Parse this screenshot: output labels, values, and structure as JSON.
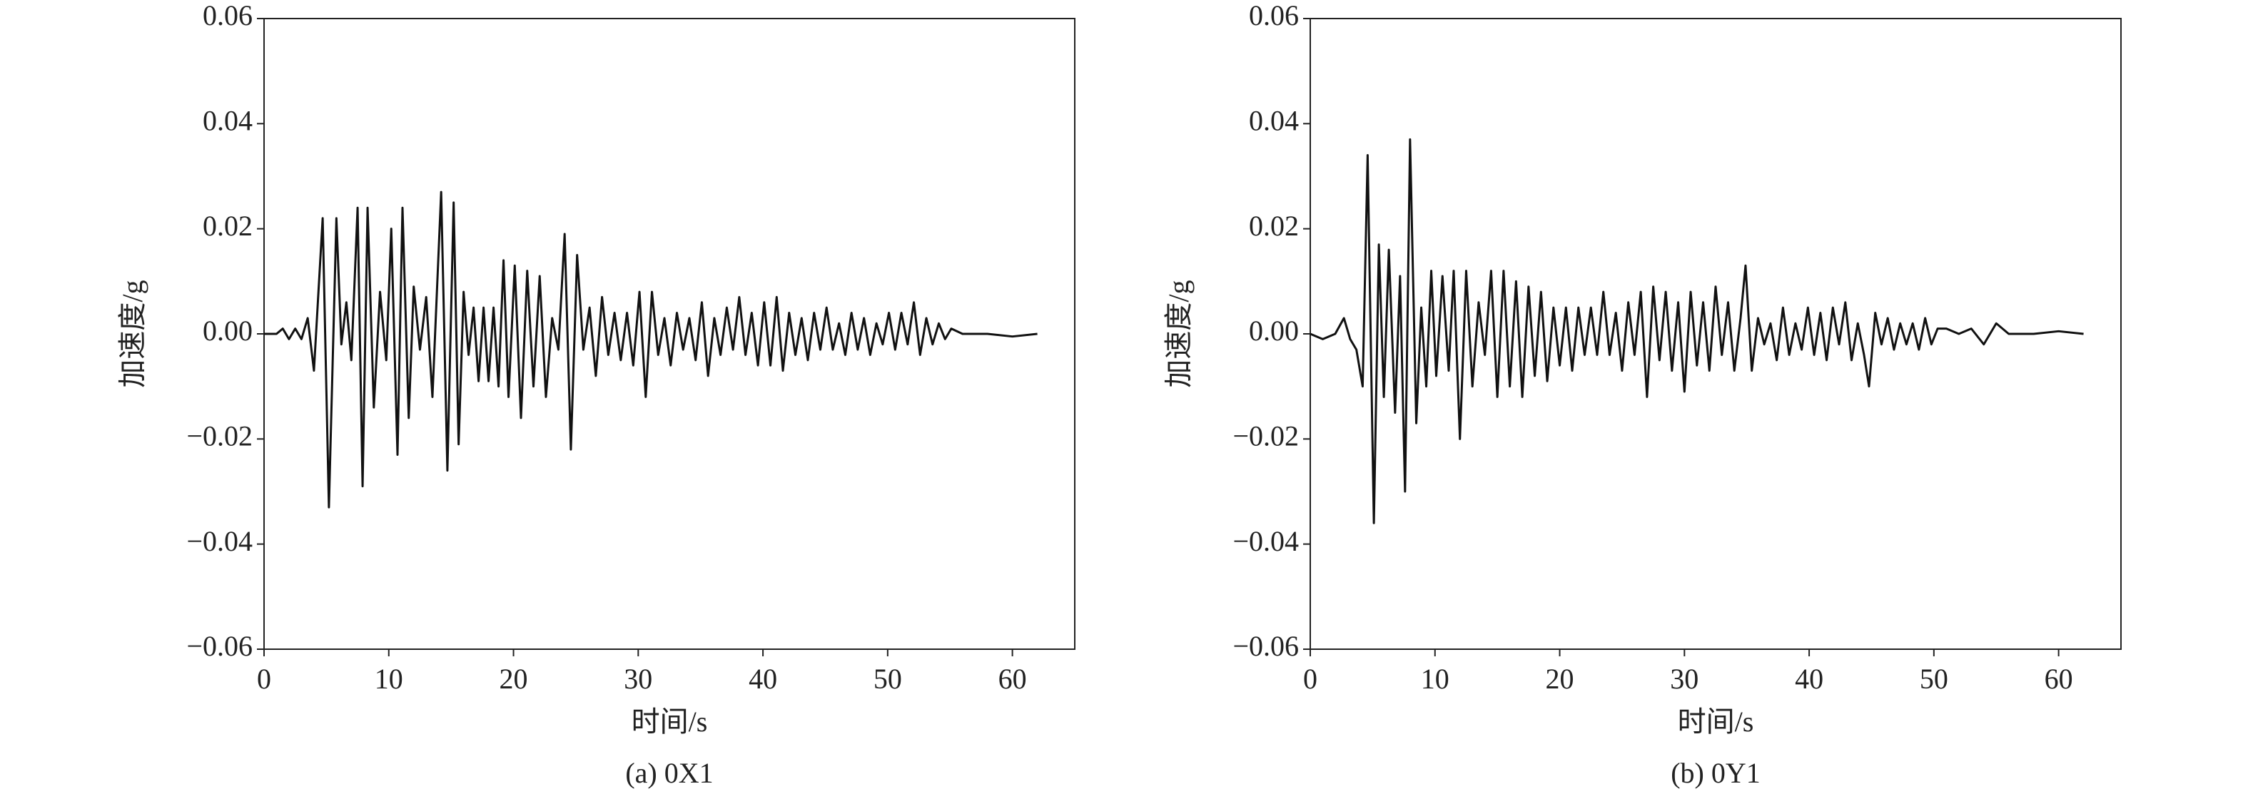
{
  "chart_data": [
    {
      "type": "line",
      "title": "(a) 0X1",
      "xlabel": "时间/s",
      "ylabel": "加速度/g",
      "color": "#111111",
      "xlim": [
        0,
        65
      ],
      "ylim": [
        -0.06,
        0.06
      ],
      "xticks": [
        0,
        10,
        20,
        30,
        40,
        50,
        60
      ],
      "yticks": [
        {
          "value": -0.06,
          "label": "−0.06"
        },
        {
          "value": -0.04,
          "label": "−0.04"
        },
        {
          "value": -0.02,
          "label": "−0.02"
        },
        {
          "value": 0,
          "label": "0.00"
        },
        0.02,
        0.04,
        0.06
      ],
      "x": [
        0,
        1,
        1.5,
        2,
        2.5,
        3,
        3.5,
        4,
        4.7,
        5.2,
        5.8,
        6.2,
        6.6,
        7.0,
        7.5,
        7.9,
        8.3,
        8.8,
        9.3,
        9.8,
        10.2,
        10.7,
        11.1,
        11.6,
        12.0,
        12.5,
        13,
        13.5,
        14.2,
        14.7,
        15.2,
        15.6,
        16.0,
        16.4,
        16.8,
        17.2,
        17.6,
        18,
        18.4,
        18.8,
        19.2,
        19.6,
        20.1,
        20.6,
        21.1,
        21.6,
        22.1,
        22.6,
        23.1,
        23.6,
        24.1,
        24.6,
        25.1,
        25.6,
        26.1,
        26.6,
        27.1,
        27.6,
        28.1,
        28.6,
        29.1,
        29.6,
        30.1,
        30.6,
        31.1,
        31.6,
        32.1,
        32.6,
        33.1,
        33.6,
        34.1,
        34.6,
        35.1,
        35.6,
        36.1,
        36.6,
        37.1,
        37.6,
        38.1,
        38.6,
        39.1,
        39.6,
        40.1,
        40.6,
        41.1,
        41.6,
        42.1,
        42.6,
        43.1,
        43.6,
        44.1,
        44.6,
        45.1,
        45.6,
        46.1,
        46.6,
        47.1,
        47.6,
        48.1,
        48.6,
        49.1,
        49.6,
        50.1,
        50.6,
        51.1,
        51.6,
        52.1,
        52.6,
        53.1,
        53.6,
        54.1,
        54.6,
        55.1,
        56,
        58,
        60,
        62
      ],
      "values": [
        0,
        0,
        0.001,
        -0.001,
        0.001,
        -0.001,
        0.003,
        -0.007,
        0.022,
        -0.033,
        0.022,
        -0.002,
        0.006,
        -0.005,
        0.024,
        -0.029,
        0.024,
        -0.014,
        0.008,
        -0.005,
        0.02,
        -0.023,
        0.024,
        -0.016,
        0.009,
        -0.003,
        0.007,
        -0.012,
        0.027,
        -0.026,
        0.025,
        -0.021,
        0.008,
        -0.004,
        0.005,
        -0.009,
        0.005,
        -0.009,
        0.005,
        -0.01,
        0.014,
        -0.012,
        0.013,
        -0.016,
        0.012,
        -0.01,
        0.011,
        -0.012,
        0.003,
        -0.003,
        0.019,
        -0.022,
        0.015,
        -0.003,
        0.005,
        -0.008,
        0.007,
        -0.004,
        0.004,
        -0.005,
        0.004,
        -0.006,
        0.008,
        -0.012,
        0.008,
        -0.004,
        0.003,
        -0.006,
        0.004,
        -0.003,
        0.003,
        -0.005,
        0.006,
        -0.008,
        0.003,
        -0.004,
        0.005,
        -0.003,
        0.007,
        -0.004,
        0.004,
        -0.006,
        0.006,
        -0.006,
        0.007,
        -0.007,
        0.004,
        -0.004,
        0.003,
        -0.005,
        0.004,
        -0.003,
        0.005,
        -0.003,
        0.002,
        -0.004,
        0.004,
        -0.003,
        0.003,
        -0.004,
        0.002,
        -0.002,
        0.004,
        -0.003,
        0.004,
        -0.002,
        0.006,
        -0.004,
        0.003,
        -0.002,
        0.002,
        -0.001,
        0.001,
        0,
        0,
        -0.0005,
        0
      ]
    },
    {
      "type": "line",
      "title": "(b) 0Y1",
      "xlabel": "时间/s",
      "ylabel": "加速度/g",
      "color": "#111111",
      "xlim": [
        0,
        65
      ],
      "ylim": [
        -0.06,
        0.06
      ],
      "xticks": [
        0,
        10,
        20,
        30,
        40,
        50,
        60
      ],
      "yticks": [
        {
          "value": -0.06,
          "label": "−0.06"
        },
        {
          "value": -0.04,
          "label": "−0.04"
        },
        {
          "value": -0.02,
          "label": "−0.02"
        },
        {
          "value": 0,
          "label": "0.00"
        },
        0.02,
        0.04,
        0.06
      ],
      "x": [
        0,
        1,
        2,
        2.7,
        3.2,
        3.7,
        4.2,
        4.6,
        5.1,
        5.5,
        5.9,
        6.3,
        6.8,
        7.2,
        7.6,
        8.0,
        8.5,
        8.9,
        9.3,
        9.7,
        10.1,
        10.6,
        11.1,
        11.5,
        12.0,
        12.5,
        13.0,
        13.5,
        14.0,
        14.5,
        15.0,
        15.5,
        16.0,
        16.5,
        17.0,
        17.5,
        18.0,
        18.5,
        19.0,
        19.5,
        20.0,
        20.5,
        21.0,
        21.5,
        22.0,
        22.5,
        23.0,
        23.5,
        24.0,
        24.5,
        25.0,
        25.5,
        26.0,
        26.5,
        27.0,
        27.5,
        28.0,
        28.5,
        29.0,
        29.5,
        30.0,
        30.5,
        31.0,
        31.5,
        32.0,
        32.5,
        33.0,
        33.5,
        34.0,
        34.5,
        34.9,
        35.4,
        35.9,
        36.4,
        36.9,
        37.4,
        37.9,
        38.4,
        38.9,
        39.4,
        39.9,
        40.4,
        40.9,
        41.4,
        41.9,
        42.4,
        42.9,
        43.4,
        43.9,
        44.4,
        44.8,
        45.3,
        45.8,
        46.3,
        46.8,
        47.3,
        47.8,
        48.3,
        48.8,
        49.3,
        49.8,
        50.3,
        51,
        52,
        53,
        54,
        55,
        56,
        58,
        60,
        62
      ],
      "values": [
        0,
        -0.001,
        0,
        0.003,
        -0.001,
        -0.003,
        -0.01,
        0.034,
        -0.036,
        0.017,
        -0.012,
        0.016,
        -0.015,
        0.011,
        -0.03,
        0.037,
        -0.017,
        0.005,
        -0.01,
        0.012,
        -0.008,
        0.011,
        -0.007,
        0.012,
        -0.02,
        0.012,
        -0.01,
        0.006,
        -0.004,
        0.012,
        -0.012,
        0.012,
        -0.01,
        0.01,
        -0.012,
        0.009,
        -0.008,
        0.008,
        -0.009,
        0.005,
        -0.006,
        0.005,
        -0.007,
        0.005,
        -0.004,
        0.005,
        -0.004,
        0.008,
        -0.004,
        0.004,
        -0.007,
        0.006,
        -0.004,
        0.008,
        -0.012,
        0.009,
        -0.005,
        0.008,
        -0.007,
        0.006,
        -0.011,
        0.008,
        -0.006,
        0.006,
        -0.007,
        0.009,
        -0.004,
        0.006,
        -0.007,
        0.003,
        0.013,
        -0.007,
        0.003,
        -0.002,
        0.002,
        -0.005,
        0.005,
        -0.004,
        0.002,
        -0.003,
        0.005,
        -0.004,
        0.004,
        -0.005,
        0.005,
        -0.002,
        0.006,
        -0.005,
        0.002,
        -0.004,
        -0.01,
        0.004,
        -0.002,
        0.003,
        -0.003,
        0.002,
        -0.002,
        0.002,
        -0.003,
        0.003,
        -0.002,
        0.001,
        0.001,
        0,
        0.001,
        -0.002,
        0.002,
        0,
        0,
        0.0005,
        0
      ]
    }
  ]
}
